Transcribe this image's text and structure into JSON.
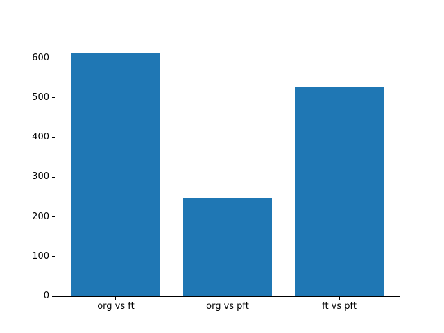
{
  "figure": {
    "background": "#ffffff"
  },
  "chart_data": {
    "type": "bar",
    "categories": [
      "org vs ft",
      "org vs pft",
      "ft vs pft"
    ],
    "values": [
      614,
      248,
      527
    ],
    "title": "",
    "xlabel": "",
    "ylabel": "",
    "ylim": [
      0,
      645
    ],
    "yticks": [
      0,
      100,
      200,
      300,
      400,
      500,
      600
    ],
    "xlim": [
      -0.54,
      2.54
    ],
    "bar_width": 0.8,
    "bar_color": "#1f77b4",
    "axis_color": "#000000",
    "grid": false,
    "legend_position": "none"
  }
}
